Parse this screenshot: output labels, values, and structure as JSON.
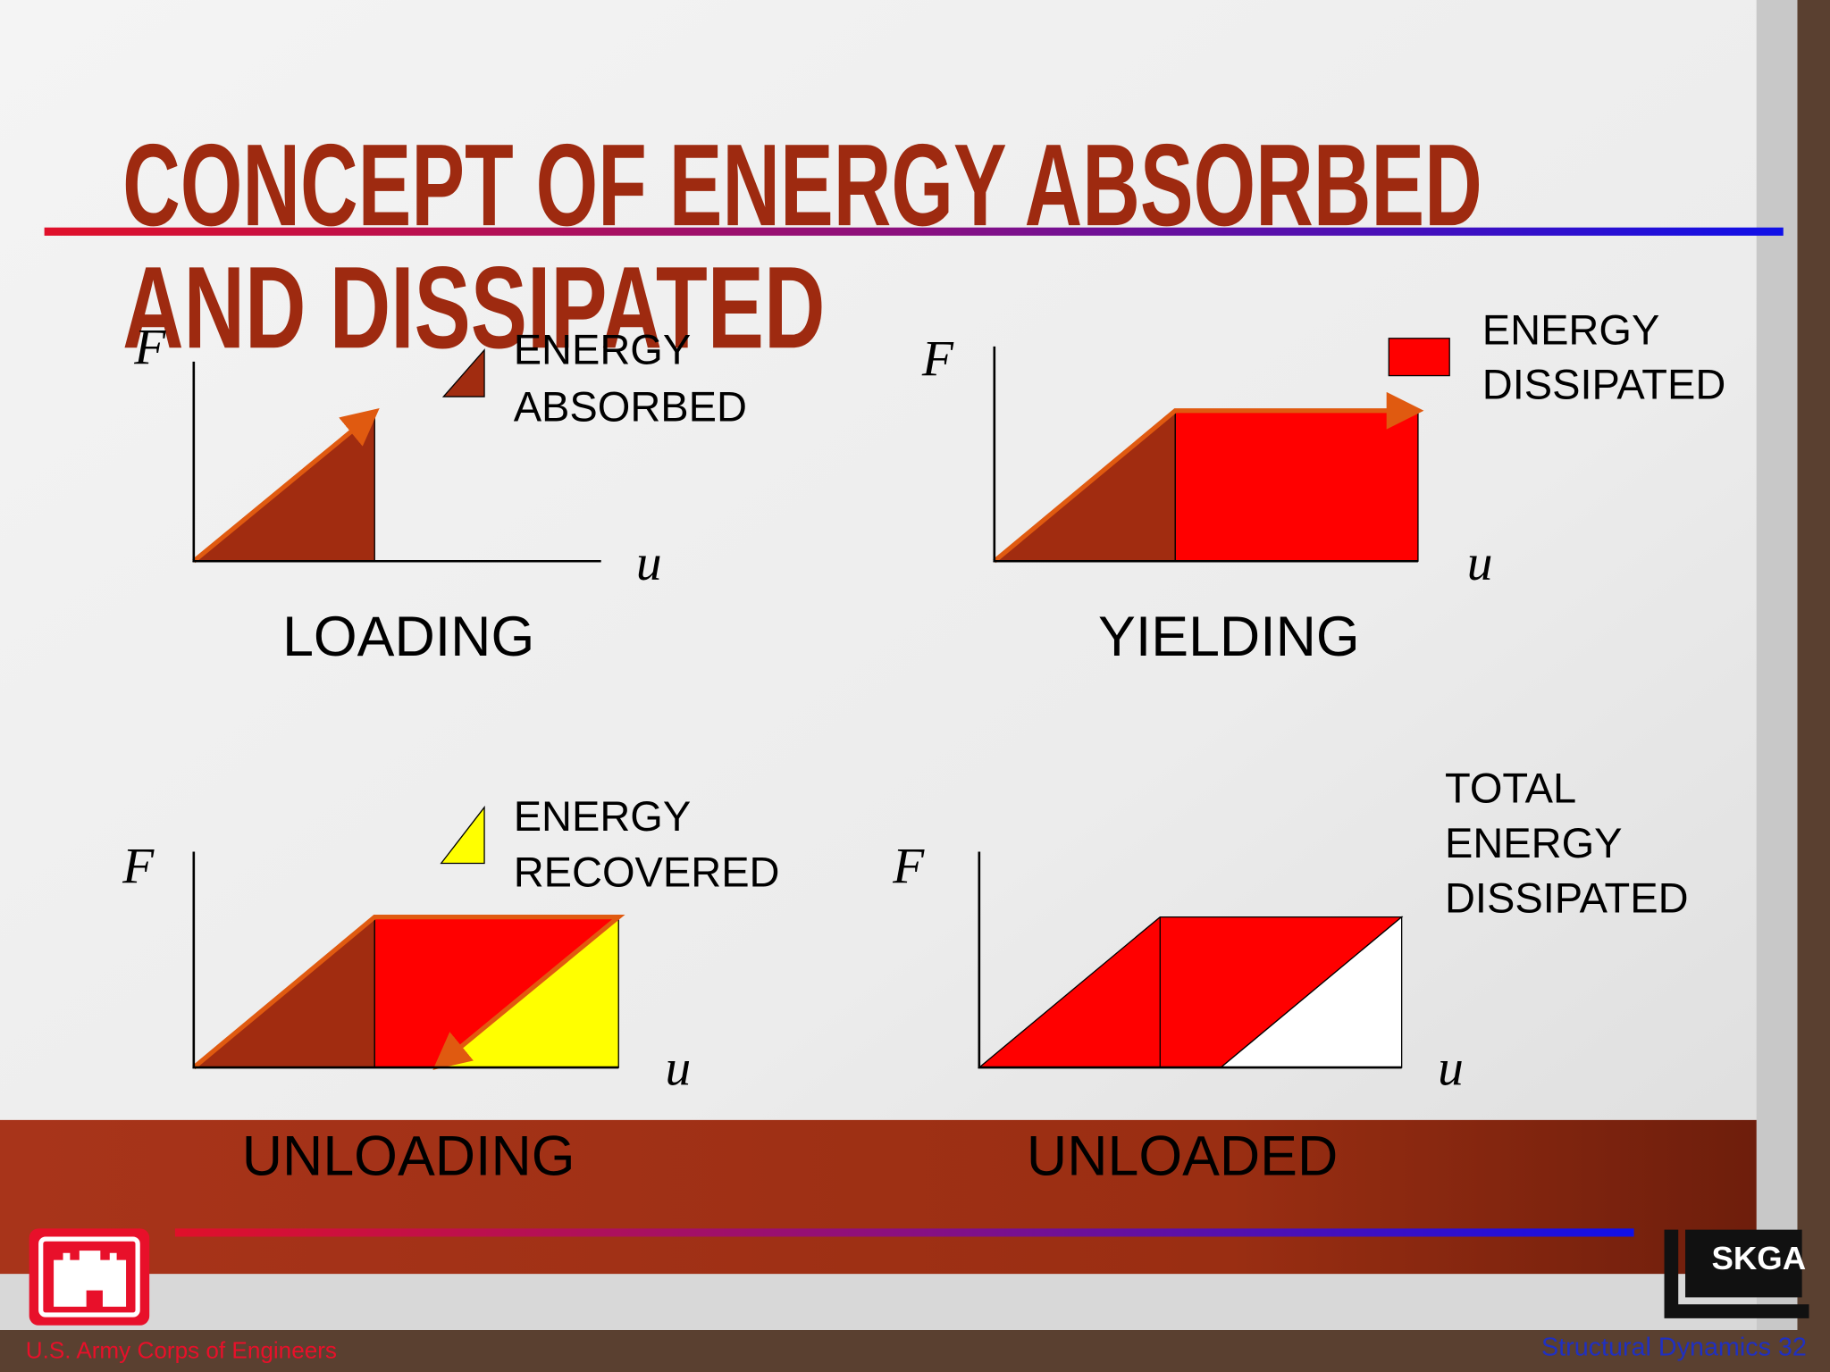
{
  "title": [
    "CONCEPT OF ENERGY ABSORBED",
    "AND DISSIPATED"
  ],
  "panels": [
    {
      "y_axis": "F",
      "x_axis": "u",
      "caption": "LOADING",
      "legend": [
        "ENERGY",
        "ABSORBED"
      ]
    },
    {
      "y_axis": "F",
      "x_axis": "u",
      "caption": "YIELDING",
      "legend": [
        "ENERGY",
        "DISSIPATED"
      ]
    },
    {
      "y_axis": "F",
      "x_axis": "u",
      "caption": "UNLOADING",
      "legend": [
        "ENERGY",
        "RECOVERED"
      ]
    },
    {
      "y_axis": "F",
      "x_axis": "u",
      "caption": "UNLOADED",
      "legend": [
        "TOTAL",
        "ENERGY",
        "DISSIPATED"
      ]
    }
  ],
  "footer": {
    "organization": "U.S. Army Corps of Engineers",
    "slide": "Structural Dynamics 32",
    "logo": "SKGA"
  }
}
